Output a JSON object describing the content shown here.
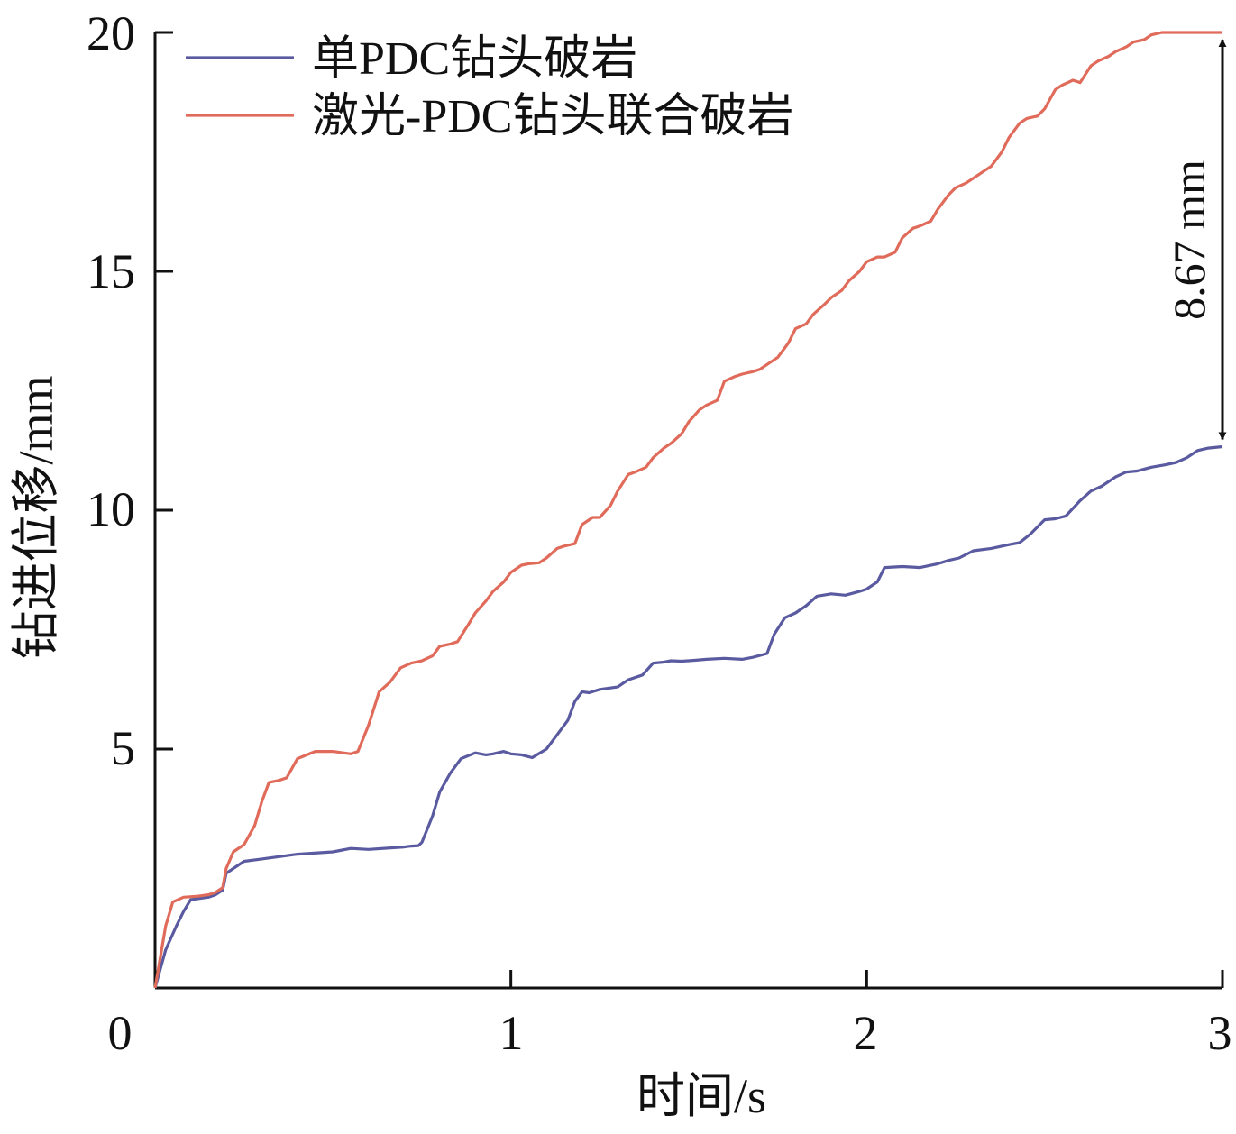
{
  "chart_data": {
    "type": "line",
    "xlabel": "时间/s",
    "ylabel": "钻进位移/mm",
    "xlim": [
      0,
      3
    ],
    "ylim": [
      0,
      20
    ],
    "xticks": [
      "0",
      "1",
      "2",
      "3"
    ],
    "yticks": [
      "5",
      "10",
      "15",
      "20"
    ],
    "grid": false,
    "legend_position": "top-left",
    "series": [
      {
        "name": "单PDC钻头破岩",
        "color": "#5a5aa0",
        "x": [
          0,
          0.03,
          0.06,
          0.08,
          0.1,
          0.15,
          0.17,
          0.19,
          0.2,
          0.25,
          0.3,
          0.4,
          0.5,
          0.55,
          0.6,
          0.7,
          0.72,
          0.74,
          0.75,
          0.78,
          0.8,
          0.83,
          0.86,
          0.9,
          0.93,
          0.95,
          0.98,
          1.0,
          1.03,
          1.06,
          1.1,
          1.13,
          1.16,
          1.18,
          1.2,
          1.22,
          1.25,
          1.3,
          1.33,
          1.37,
          1.4,
          1.43,
          1.45,
          1.48,
          1.52,
          1.55,
          1.6,
          1.65,
          1.68,
          1.72,
          1.74,
          1.77,
          1.8,
          1.83,
          1.86,
          1.9,
          1.94,
          1.98,
          2.0,
          2.03,
          2.05,
          2.1,
          2.15,
          2.2,
          2.23,
          2.26,
          2.3,
          2.35,
          2.4,
          2.43,
          2.46,
          2.5,
          2.53,
          2.56,
          2.6,
          2.63,
          2.66,
          2.7,
          2.73,
          2.76,
          2.8,
          2.84,
          2.87,
          2.9,
          2.93,
          2.96,
          3.0
        ],
        "y": [
          0,
          0.8,
          1.3,
          1.6,
          1.85,
          1.9,
          1.95,
          2.05,
          2.4,
          2.65,
          2.7,
          2.8,
          2.85,
          2.92,
          2.9,
          2.95,
          2.97,
          2.98,
          3.05,
          3.6,
          4.1,
          4.5,
          4.8,
          4.92,
          4.88,
          4.9,
          4.95,
          4.9,
          4.88,
          4.82,
          5.0,
          5.3,
          5.6,
          6.0,
          6.2,
          6.18,
          6.25,
          6.3,
          6.45,
          6.55,
          6.8,
          6.82,
          6.85,
          6.84,
          6.86,
          6.88,
          6.9,
          6.88,
          6.92,
          7.0,
          7.4,
          7.75,
          7.85,
          8.0,
          8.2,
          8.25,
          8.22,
          8.3,
          8.35,
          8.5,
          8.8,
          8.82,
          8.8,
          8.88,
          8.95,
          9.0,
          9.15,
          9.2,
          9.28,
          9.32,
          9.5,
          9.8,
          9.82,
          9.88,
          10.2,
          10.4,
          10.5,
          10.7,
          10.8,
          10.82,
          10.9,
          10.95,
          11.0,
          11.1,
          11.25,
          11.3,
          11.33
        ]
      },
      {
        "name": "激光-PDC钻头联合破岩",
        "color": "#e06b5a",
        "x": [
          0,
          0.03,
          0.05,
          0.08,
          0.12,
          0.15,
          0.17,
          0.19,
          0.2,
          0.22,
          0.25,
          0.28,
          0.3,
          0.32,
          0.35,
          0.37,
          0.4,
          0.45,
          0.5,
          0.55,
          0.57,
          0.6,
          0.63,
          0.66,
          0.69,
          0.72,
          0.75,
          0.78,
          0.8,
          0.83,
          0.85,
          0.88,
          0.9,
          0.93,
          0.95,
          0.98,
          1.0,
          1.03,
          1.05,
          1.08,
          1.1,
          1.13,
          1.15,
          1.18,
          1.2,
          1.23,
          1.25,
          1.28,
          1.3,
          1.33,
          1.35,
          1.38,
          1.4,
          1.43,
          1.45,
          1.48,
          1.5,
          1.53,
          1.55,
          1.58,
          1.6,
          1.63,
          1.65,
          1.68,
          1.7,
          1.73,
          1.75,
          1.78,
          1.8,
          1.83,
          1.85,
          1.88,
          1.9,
          1.93,
          1.95,
          1.98,
          2.0,
          2.03,
          2.05,
          2.08,
          2.1,
          2.13,
          2.15,
          2.18,
          2.2,
          2.23,
          2.25,
          2.28,
          2.3,
          2.33,
          2.35,
          2.38,
          2.4,
          2.43,
          2.45,
          2.48,
          2.5,
          2.53,
          2.55,
          2.58,
          2.6,
          2.63,
          2.65,
          2.68,
          2.7,
          2.73,
          2.75,
          2.78,
          2.8,
          2.83,
          2.85,
          2.88,
          2.9,
          2.93,
          2.96,
          3.0
        ],
        "y": [
          0,
          1.3,
          1.8,
          1.9,
          1.92,
          1.95,
          2.0,
          2.1,
          2.5,
          2.85,
          3.0,
          3.4,
          3.9,
          4.3,
          4.35,
          4.4,
          4.8,
          4.95,
          4.95,
          4.9,
          4.95,
          5.5,
          6.2,
          6.4,
          6.7,
          6.8,
          6.85,
          6.95,
          7.15,
          7.2,
          7.25,
          7.6,
          7.85,
          8.1,
          8.3,
          8.5,
          8.7,
          8.85,
          8.88,
          8.9,
          9.0,
          9.2,
          9.25,
          9.3,
          9.7,
          9.85,
          9.85,
          10.1,
          10.4,
          10.75,
          10.8,
          10.9,
          11.1,
          11.3,
          11.4,
          11.6,
          11.85,
          12.1,
          12.2,
          12.3,
          12.7,
          12.8,
          12.85,
          12.9,
          12.95,
          13.1,
          13.2,
          13.5,
          13.8,
          13.9,
          14.1,
          14.3,
          14.45,
          14.6,
          14.8,
          15.0,
          15.2,
          15.3,
          15.3,
          15.4,
          15.7,
          15.9,
          15.95,
          16.05,
          16.3,
          16.6,
          16.75,
          16.85,
          16.95,
          17.1,
          17.2,
          17.5,
          17.8,
          18.1,
          18.2,
          18.25,
          18.4,
          18.8,
          18.9,
          19.0,
          18.95,
          19.3,
          19.4,
          19.5,
          19.6,
          19.7,
          19.8,
          19.85,
          19.95,
          20.0,
          20.0,
          20.0,
          20.0,
          20.0,
          20.0,
          20.0
        ]
      }
    ],
    "annotations": [
      {
        "text": "8.67 mm",
        "x": 3.0,
        "y_from": 11.33,
        "y_to": 20.0
      }
    ]
  }
}
